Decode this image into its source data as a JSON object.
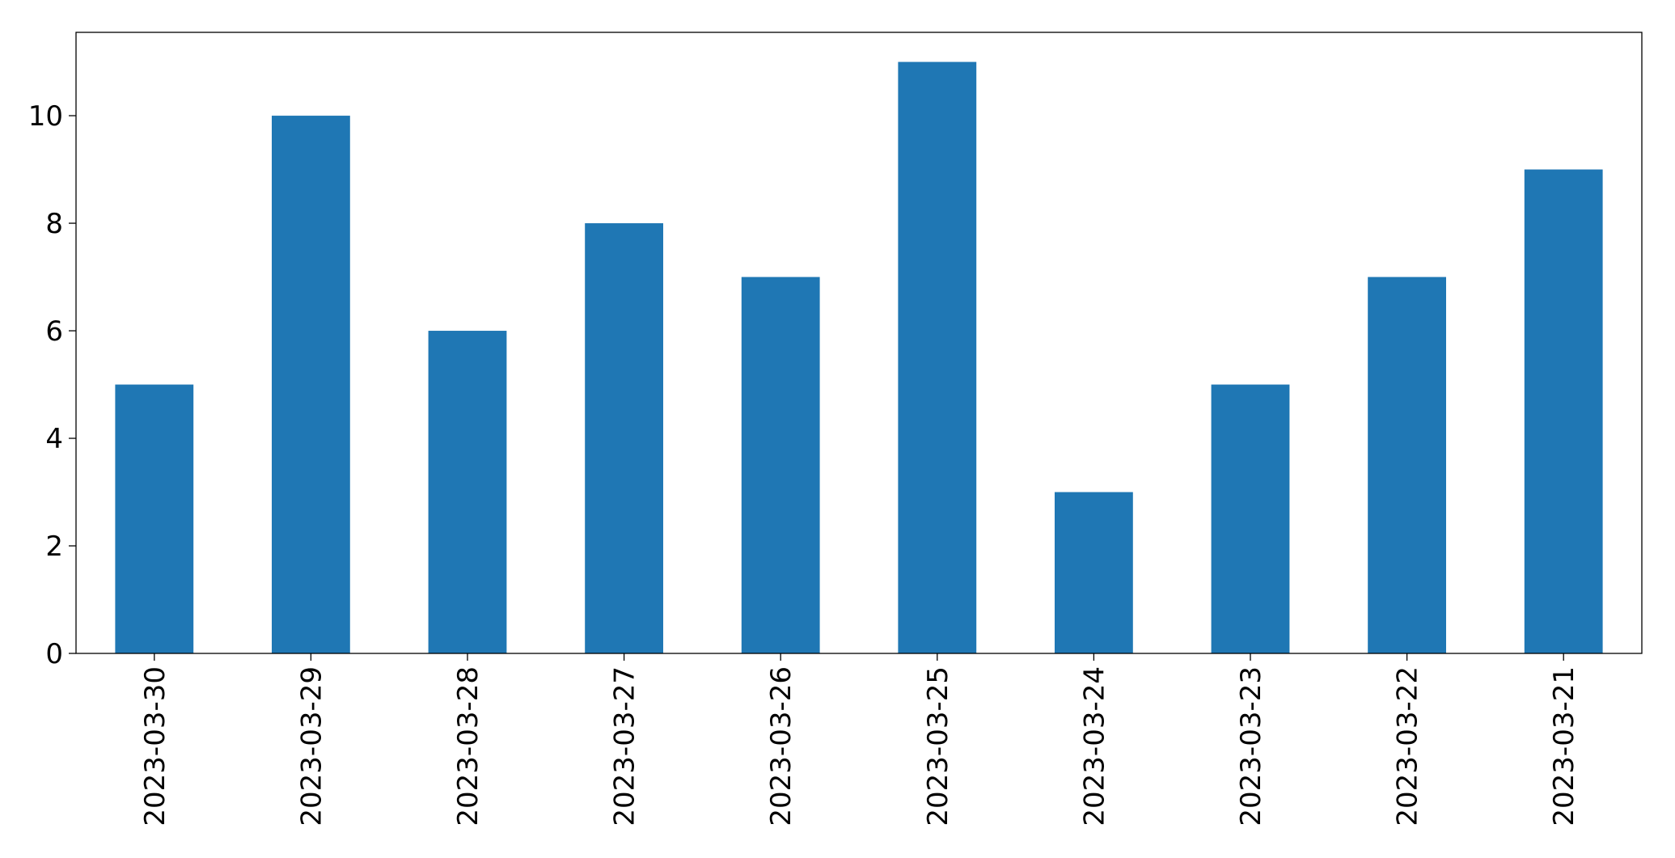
{
  "chart_data": {
    "type": "bar",
    "categories": [
      "2023-03-30",
      "2023-03-29",
      "2023-03-28",
      "2023-03-27",
      "2023-03-26",
      "2023-03-25",
      "2023-03-24",
      "2023-03-23",
      "2023-03-22",
      "2023-03-21"
    ],
    "values": [
      5,
      10,
      6,
      8,
      7,
      11,
      3,
      5,
      7,
      9
    ],
    "color": "#1f77b4",
    "ylim": [
      0,
      11.55
    ],
    "yticks": [
      0,
      2,
      4,
      6,
      8,
      10
    ],
    "grid": false
  }
}
